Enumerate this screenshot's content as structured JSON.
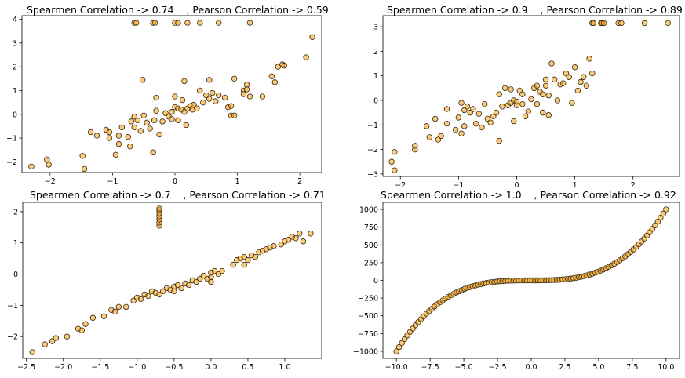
{
  "chart_data": [
    {
      "type": "scatter",
      "title": "Spearmen Correlation -> 0.74    , Pearson Correlation -> 0.59",
      "xlabel": "",
      "ylabel": "",
      "xlim": [
        -2.45,
        2.35
      ],
      "ylim": [
        -2.45,
        4.15
      ],
      "xticks": [
        -2,
        -1,
        0,
        1,
        2
      ],
      "yticks": [
        -2,
        -1,
        0,
        1,
        2,
        3,
        4
      ],
      "grid": false,
      "point_color": "#f5a623",
      "points": [
        [
          -2.3,
          -2.2
        ],
        [
          -2.05,
          -1.9
        ],
        [
          -2.02,
          -2.12
        ],
        [
          -1.45,
          -2.3
        ],
        [
          -1.48,
          -1.75
        ],
        [
          -1.35,
          -0.75
        ],
        [
          -1.25,
          -0.9
        ],
        [
          -1.1,
          -0.65
        ],
        [
          -1.05,
          -0.75
        ],
        [
          -1.05,
          -1.0
        ],
        [
          -0.95,
          -1.7
        ],
        [
          -0.9,
          -0.9
        ],
        [
          -0.9,
          -1.25
        ],
        [
          -0.85,
          -0.55
        ],
        [
          -0.75,
          -0.95
        ],
        [
          -0.7,
          -0.3
        ],
        [
          -0.72,
          -1.35
        ],
        [
          -0.65,
          -0.1
        ],
        [
          -0.65,
          -0.55
        ],
        [
          -0.6,
          -0.25
        ],
        [
          -0.55,
          -0.7
        ],
        [
          -0.5,
          -0.05
        ],
        [
          -0.45,
          -0.35
        ],
        [
          -0.4,
          -0.6
        ],
        [
          -0.35,
          -1.6
        ],
        [
          -0.33,
          -0.25
        ],
        [
          -0.3,
          0.15
        ],
        [
          -0.3,
          0.7
        ],
        [
          -0.25,
          -0.85
        ],
        [
          -0.2,
          -0.3
        ],
        [
          -0.15,
          0.05
        ],
        [
          -0.1,
          -0.1
        ],
        [
          -0.05,
          -0.2
        ],
        [
          -0.05,
          0.1
        ],
        [
          0.0,
          0.3
        ],
        [
          0.0,
          0.75
        ],
        [
          0.05,
          0.25
        ],
        [
          0.05,
          -0.25
        ],
        [
          0.1,
          0.2
        ],
        [
          0.12,
          0.6
        ],
        [
          0.15,
          0.1
        ],
        [
          0.18,
          -0.45
        ],
        [
          0.2,
          0.25
        ],
        [
          0.25,
          0.35
        ],
        [
          0.28,
          0.2
        ],
        [
          0.3,
          0.4
        ],
        [
          0.35,
          0.25
        ],
        [
          0.4,
          1.0
        ],
        [
          0.45,
          0.5
        ],
        [
          0.5,
          0.8
        ],
        [
          0.55,
          0.65
        ],
        [
          0.6,
          0.9
        ],
        [
          0.65,
          0.55
        ],
        [
          0.7,
          0.8
        ],
        [
          0.8,
          0.7
        ],
        [
          0.85,
          0.3
        ],
        [
          0.9,
          0.35
        ],
        [
          0.9,
          -0.05
        ],
        [
          0.95,
          -0.05
        ],
        [
          1.1,
          1.0
        ],
        [
          1.1,
          0.85
        ],
        [
          1.15,
          1.25
        ],
        [
          1.15,
          1.05
        ],
        [
          1.2,
          0.75
        ],
        [
          1.4,
          0.75
        ],
        [
          1.55,
          1.6
        ],
        [
          1.6,
          1.35
        ],
        [
          1.65,
          2.0
        ],
        [
          1.72,
          2.1
        ],
        [
          1.75,
          2.05
        ],
        [
          2.1,
          2.4
        ],
        [
          2.2,
          3.25
        ],
        [
          -0.52,
          1.45
        ],
        [
          0.15,
          1.4
        ],
        [
          0.55,
          1.45
        ],
        [
          0.95,
          1.5
        ],
        [
          -0.65,
          3.85
        ],
        [
          -0.62,
          3.85
        ],
        [
          -0.35,
          3.85
        ],
        [
          -0.32,
          3.85
        ],
        [
          0.0,
          3.85
        ],
        [
          0.05,
          3.85
        ],
        [
          0.2,
          3.85
        ],
        [
          0.4,
          3.85
        ],
        [
          0.7,
          3.85
        ],
        [
          1.2,
          3.85
        ]
      ]
    },
    {
      "type": "scatter",
      "title": "Spearmen Correlation -> 0.9    , Pearson Correlation -> 0.89",
      "xlabel": "",
      "ylabel": "",
      "xlim": [
        -2.3,
        2.8
      ],
      "ylim": [
        -3.1,
        3.45
      ],
      "xticks": [
        -2,
        -1,
        0,
        1,
        2
      ],
      "yticks": [
        -3,
        -2,
        -1,
        0,
        1,
        2,
        3
      ],
      "grid": false,
      "point_color": "#f5a623",
      "points": [
        [
          -2.15,
          -2.5
        ],
        [
          -2.1,
          -2.85
        ],
        [
          -2.1,
          -2.1
        ],
        [
          -1.75,
          -2.0
        ],
        [
          -1.75,
          -1.85
        ],
        [
          -1.55,
          -1.05
        ],
        [
          -1.5,
          -1.5
        ],
        [
          -1.35,
          -1.6
        ],
        [
          -1.3,
          -1.45
        ],
        [
          -1.2,
          -0.35
        ],
        [
          -1.2,
          -0.95
        ],
        [
          -1.05,
          -1.2
        ],
        [
          -1.0,
          -0.7
        ],
        [
          -0.95,
          -0.1
        ],
        [
          -0.95,
          -1.35
        ],
        [
          -0.9,
          -0.4
        ],
        [
          -0.9,
          -1.05
        ],
        [
          -0.85,
          -0.25
        ],
        [
          -0.8,
          -0.5
        ],
        [
          -0.75,
          -0.35
        ],
        [
          -0.7,
          -0.95
        ],
        [
          -0.65,
          -0.55
        ],
        [
          -0.6,
          -1.1
        ],
        [
          -0.5,
          -0.75
        ],
        [
          -0.45,
          -0.9
        ],
        [
          -0.4,
          -0.65
        ],
        [
          -0.35,
          -0.5
        ],
        [
          -0.3,
          0.25
        ],
        [
          -0.25,
          -0.25
        ],
        [
          -0.2,
          0.5
        ],
        [
          -0.15,
          -0.2
        ],
        [
          -0.1,
          0.45
        ],
        [
          -0.1,
          -0.1
        ],
        [
          -0.05,
          0.0
        ],
        [
          -0.05,
          -0.85
        ],
        [
          0.0,
          -0.2
        ],
        [
          0.05,
          0.4
        ],
        [
          0.1,
          0.25
        ],
        [
          0.1,
          -0.15
        ],
        [
          0.15,
          -0.65
        ],
        [
          0.2,
          -0.45
        ],
        [
          0.25,
          0.05
        ],
        [
          0.3,
          0.5
        ],
        [
          0.35,
          0.6
        ],
        [
          0.4,
          0.35
        ],
        [
          0.45,
          -0.5
        ],
        [
          0.5,
          0.85
        ],
        [
          0.5,
          0.6
        ],
        [
          0.55,
          -0.6
        ],
        [
          0.55,
          0.2
        ],
        [
          0.6,
          1.5
        ],
        [
          0.65,
          0.85
        ],
        [
          0.7,
          0.0
        ],
        [
          0.75,
          0.65
        ],
        [
          0.8,
          0.7
        ],
        [
          0.85,
          1.1
        ],
        [
          0.9,
          0.95
        ],
        [
          0.95,
          -0.1
        ],
        [
          1.0,
          1.35
        ],
        [
          1.05,
          0.4
        ],
        [
          1.1,
          0.75
        ],
        [
          1.15,
          0.95
        ],
        [
          1.2,
          0.6
        ],
        [
          1.25,
          1.7
        ],
        [
          1.3,
          1.1
        ],
        [
          1.3,
          3.15
        ],
        [
          1.32,
          3.15
        ],
        [
          1.45,
          3.15
        ],
        [
          1.47,
          3.15
        ],
        [
          1.5,
          3.15
        ],
        [
          1.75,
          3.15
        ],
        [
          1.8,
          3.15
        ],
        [
          2.2,
          3.15
        ],
        [
          2.6,
          3.15
        ],
        [
          0.0,
          -0.05
        ],
        [
          -0.55,
          -0.15
        ],
        [
          0.35,
          -0.15
        ],
        [
          -1.4,
          -0.75
        ],
        [
          -0.3,
          -1.65
        ],
        [
          0.45,
          0.25
        ]
      ]
    },
    {
      "type": "scatter",
      "title": "Spearmen Correlation -> 0.7    , Pearson Correlation -> 0.71",
      "xlabel": "",
      "ylabel": "",
      "xlim": [
        -2.55,
        1.5
      ],
      "ylim": [
        -2.7,
        2.3
      ],
      "xticks": [
        -2.5,
        -2.0,
        -1.5,
        -1.0,
        -0.5,
        0.0,
        0.5,
        1.0
      ],
      "yticks": [
        -2,
        -1,
        0,
        1,
        2
      ],
      "grid": false,
      "point_color": "#f5a623",
      "points": [
        [
          -2.42,
          -2.5
        ],
        [
          -2.25,
          -2.25
        ],
        [
          -2.15,
          -2.15
        ],
        [
          -2.1,
          -2.05
        ],
        [
          -1.95,
          -2.0
        ],
        [
          -1.8,
          -1.75
        ],
        [
          -1.75,
          -1.8
        ],
        [
          -1.7,
          -1.6
        ],
        [
          -1.6,
          -1.4
        ],
        [
          -1.45,
          -1.35
        ],
        [
          -1.35,
          -1.15
        ],
        [
          -1.3,
          -1.2
        ],
        [
          -1.25,
          -1.05
        ],
        [
          -1.15,
          -1.05
        ],
        [
          -1.05,
          -0.85
        ],
        [
          -1.0,
          -0.75
        ],
        [
          -0.95,
          -0.8
        ],
        [
          -0.9,
          -0.65
        ],
        [
          -0.85,
          -0.7
        ],
        [
          -0.8,
          -0.55
        ],
        [
          -0.75,
          -0.6
        ],
        [
          -0.7,
          -0.65
        ],
        [
          -0.65,
          -0.55
        ],
        [
          -0.6,
          -0.45
        ],
        [
          -0.55,
          -0.5
        ],
        [
          -0.5,
          -0.4
        ],
        [
          -0.45,
          -0.35
        ],
        [
          -0.4,
          -0.45
        ],
        [
          -0.35,
          -0.3
        ],
        [
          -0.3,
          -0.35
        ],
        [
          -0.25,
          -0.2
        ],
        [
          -0.2,
          -0.25
        ],
        [
          -0.15,
          -0.15
        ],
        [
          -0.1,
          -0.05
        ],
        [
          -0.05,
          -0.15
        ],
        [
          0.0,
          0.05
        ],
        [
          0.0,
          -0.1
        ],
        [
          0.05,
          0.1
        ],
        [
          0.1,
          0.0
        ],
        [
          0.3,
          0.3
        ],
        [
          0.35,
          0.45
        ],
        [
          0.4,
          0.5
        ],
        [
          0.45,
          0.55
        ],
        [
          0.45,
          0.3
        ],
        [
          0.5,
          0.45
        ],
        [
          0.55,
          0.6
        ],
        [
          0.6,
          0.55
        ],
        [
          0.65,
          0.7
        ],
        [
          0.7,
          0.75
        ],
        [
          0.75,
          0.8
        ],
        [
          0.8,
          0.85
        ],
        [
          0.85,
          0.9
        ],
        [
          0.95,
          0.95
        ],
        [
          1.0,
          1.05
        ],
        [
          1.05,
          1.1
        ],
        [
          1.1,
          1.2
        ],
        [
          1.15,
          1.15
        ],
        [
          1.2,
          1.3
        ],
        [
          1.25,
          1.05
        ],
        [
          1.35,
          1.3
        ],
        [
          -0.7,
          1.55
        ],
        [
          -0.7,
          1.65
        ],
        [
          -0.7,
          1.75
        ],
        [
          -0.7,
          1.85
        ],
        [
          -0.7,
          1.95
        ],
        [
          -0.7,
          2.05
        ],
        [
          -0.7,
          2.1
        ],
        [
          -0.5,
          -0.55
        ],
        [
          0.15,
          0.1
        ],
        [
          0.0,
          -0.25
        ]
      ]
    },
    {
      "type": "scatter",
      "title": "Spearmen Correlation -> 1.0    , Pearson Correlation -> 0.92",
      "xlabel": "",
      "ylabel": "",
      "xlim": [
        -11.0,
        11.0
      ],
      "ylim": [
        -1100,
        1100
      ],
      "xticks": [
        -10.0,
        -7.5,
        -5.0,
        -2.5,
        0.0,
        2.5,
        5.0,
        7.5,
        10.0
      ],
      "yticks": [
        -1000,
        -750,
        -500,
        -250,
        0,
        250,
        500,
        750,
        1000
      ],
      "grid": false,
      "point_color": "#f5a623",
      "points_function": "y = x^3",
      "x_range": [
        -10,
        10
      ],
      "n_points": 100
    }
  ]
}
